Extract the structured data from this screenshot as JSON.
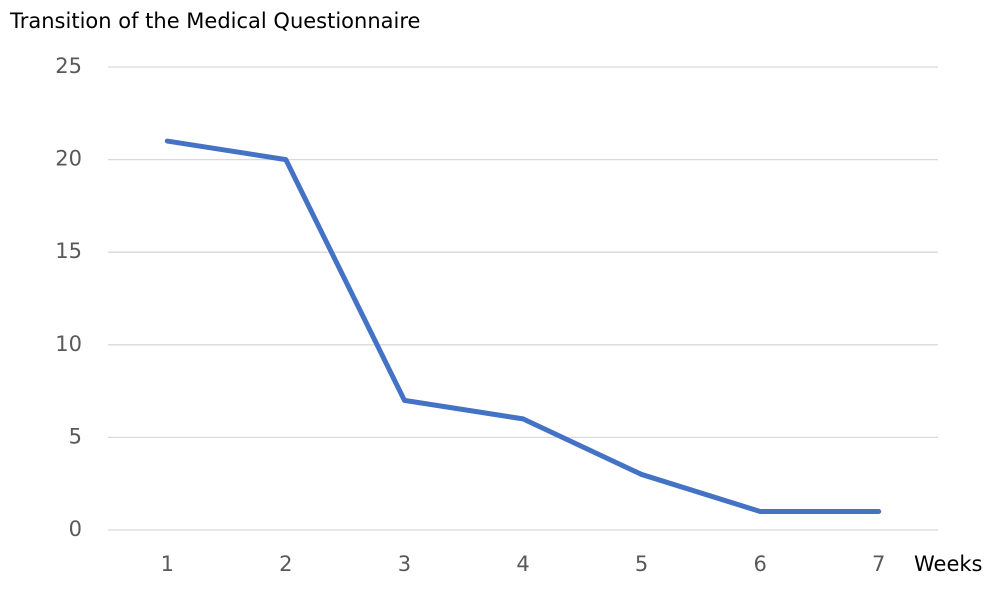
{
  "chart_data": {
    "type": "line",
    "title": "Transition of the Medical Questionnaire",
    "x_label": "Weeks",
    "categories": [
      "1",
      "2",
      "3",
      "4",
      "5",
      "6",
      "7"
    ],
    "values": [
      21,
      20,
      7,
      6,
      3,
      1,
      1
    ],
    "color": "#4472c4",
    "ylim": [
      0,
      25
    ],
    "yticks": [
      0,
      5,
      10,
      15,
      20,
      25
    ],
    "grid": true
  }
}
